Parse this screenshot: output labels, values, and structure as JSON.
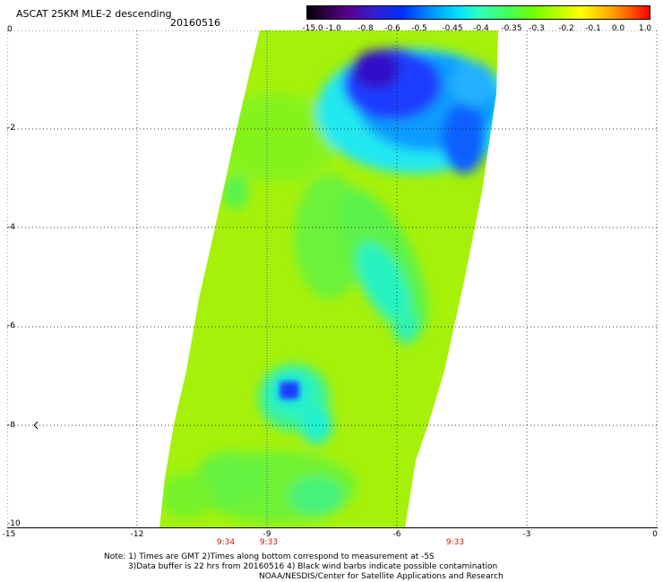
{
  "title": "ASCAT 25KM MLE-2 descending",
  "date": "20160516",
  "colorbar": {
    "labels": [
      "-15.0",
      "-1.0",
      "-0.8",
      "-0.6",
      "-0.5",
      "-0.45",
      "-0.4",
      "-0.35",
      "-0.3",
      "-0.2",
      "-0.1",
      "0.0",
      "1.0"
    ]
  },
  "axes": {
    "y_ticks": [
      "0",
      "-2",
      "-4",
      "-6",
      "-8",
      "-10"
    ],
    "x_ticks": [
      "-15",
      "-12",
      "-9",
      "-6",
      "-3",
      "0"
    ],
    "y_range": [
      -10,
      0
    ],
    "x_range": [
      -15,
      0
    ],
    "grid": true
  },
  "pass_times": [
    "9:34",
    "9:33",
    "9:33"
  ],
  "notes": [
    "Note: 1) Times are GMT 2)Times along bottom correspond to measurement at -5S",
    "3)Data buffer is 22 hrs from 20160516 4) Black wind barbs indicate possible contamination",
    "NOAA/NESDIS/Center for Satellite Applications and Research"
  ],
  "colors": {
    "background_field": "#a6f10a",
    "field_green": "#5cf24a",
    "field_cyan": "#26f3c4",
    "field_blue": "#1e3cff",
    "field_purple": "#3010c8",
    "time_label": "#c02000"
  }
}
